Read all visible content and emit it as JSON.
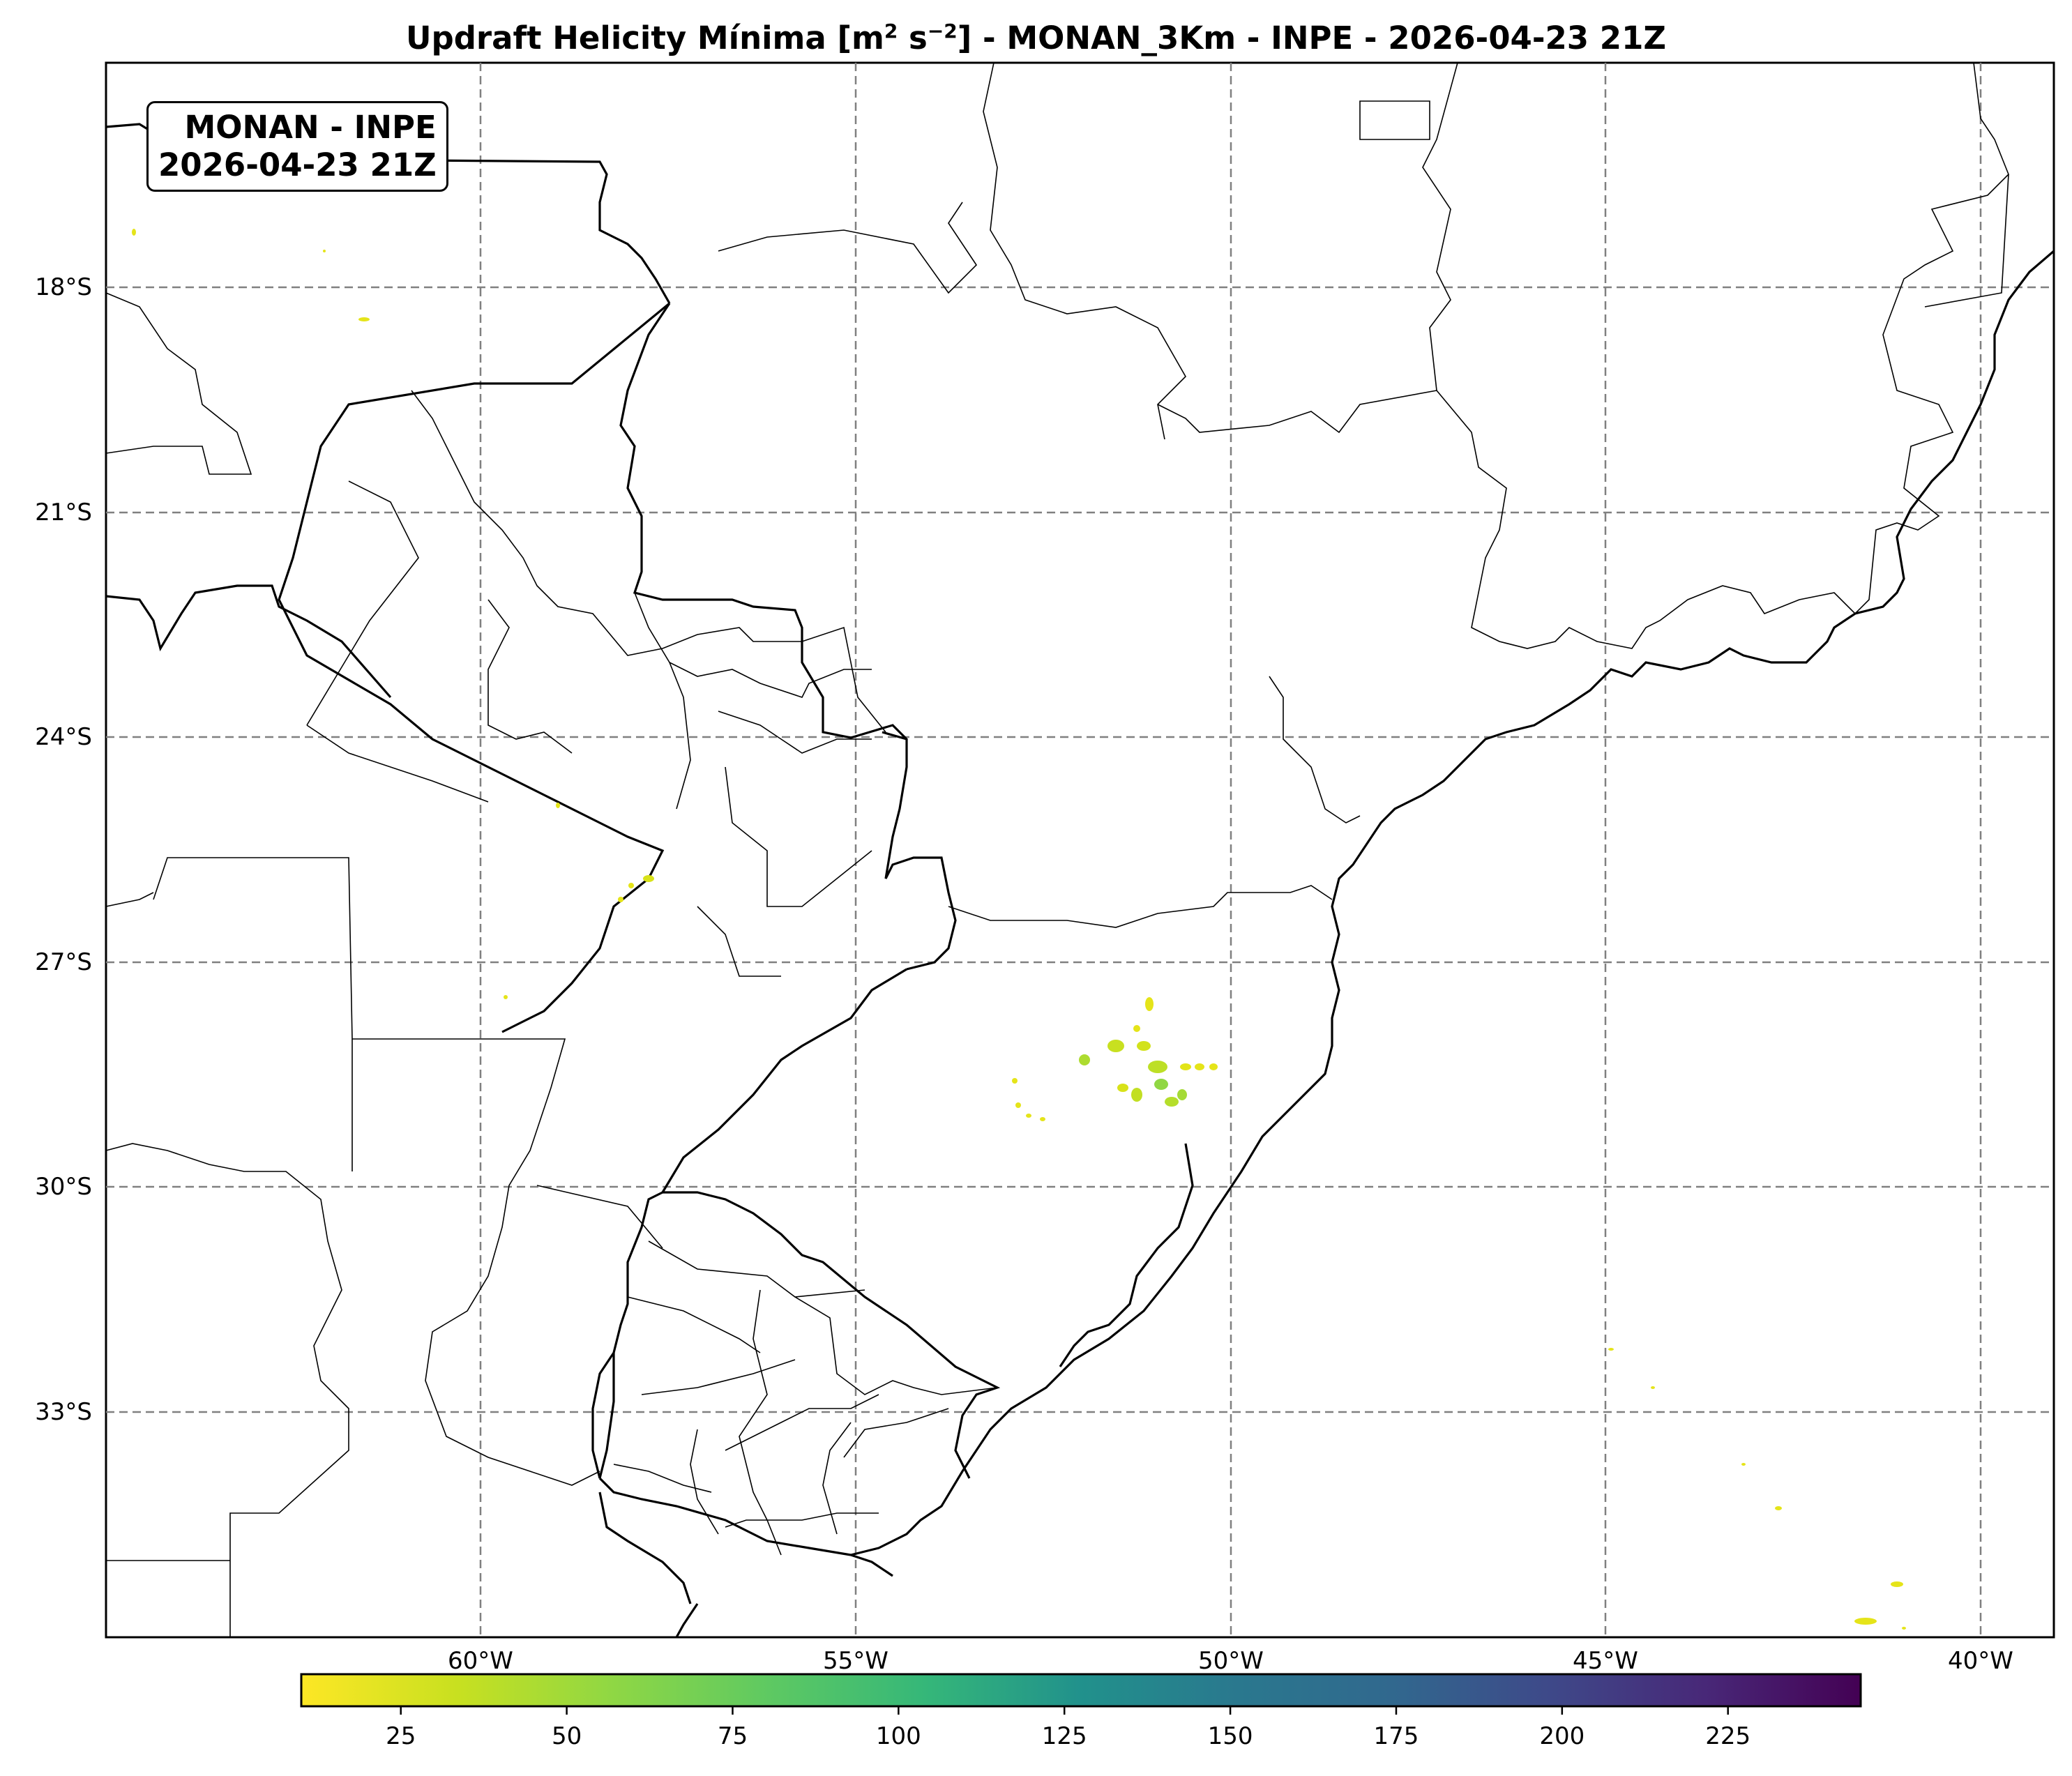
{
  "title": {
    "main": "Updraft Helicity Mínima [m",
    "sup1": "2",
    "mid": " s",
    "sup2": "−2",
    "end": "] - MONAN_3Km - INPE - 2026-04-23 21Z"
  },
  "stamp": {
    "line1": "MONAN - INPE",
    "line2": "2026-04-23 21Z"
  },
  "lat_labels": [
    "18°S",
    "21°S",
    "24°S",
    "27°S",
    "30°S",
    "33°S"
  ],
  "lon_labels": [
    "60°W",
    "55°W",
    "50°W",
    "45°W",
    "40°W"
  ],
  "colorbar": {
    "ticks": [
      "25",
      "50",
      "75",
      "100",
      "125",
      "150",
      "175",
      "200",
      "225"
    ],
    "range": [
      10,
      245
    ],
    "colormap": "viridis_r"
  },
  "colors": {
    "grid": "#808080",
    "coast": "#000000",
    "low": "#fde725",
    "mid": "#21918c",
    "high": "#440154"
  }
}
